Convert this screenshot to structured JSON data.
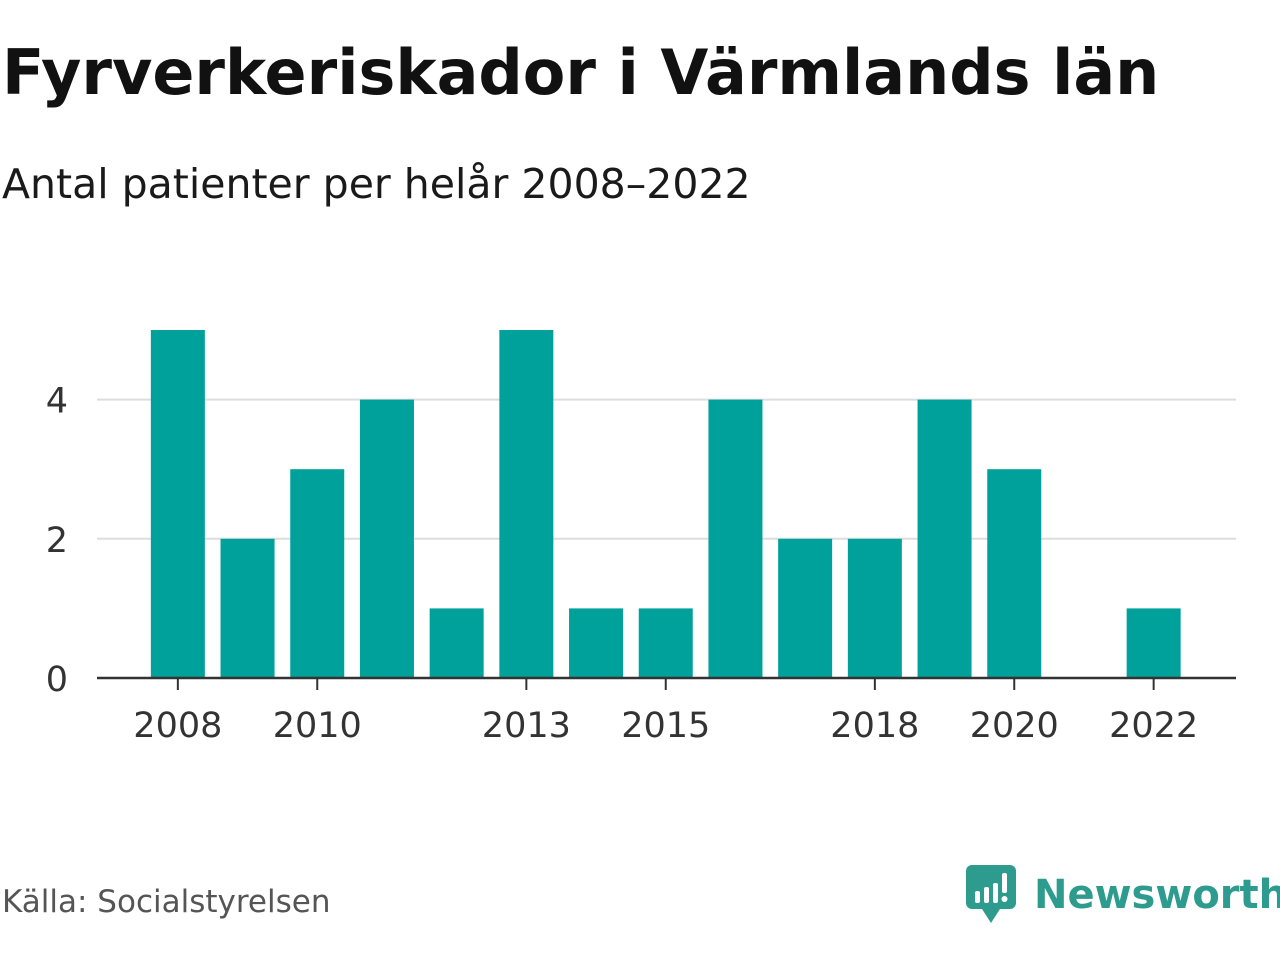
{
  "title": "Fyrverkeriskador i Värmlands län",
  "subtitle": "Antal patienter per helår 2008–2022",
  "source": "Källa: Socialstyrelsen",
  "brand": {
    "name": "Newsworthy",
    "icon": "newsworthy-logo-icon",
    "color": "#2e9b8f"
  },
  "colors": {
    "bar": "#00a19a",
    "grid": "#dddddd",
    "axis": "#333333"
  },
  "chart_data": {
    "type": "bar",
    "categories": [
      2008,
      2009,
      2010,
      2011,
      2012,
      2013,
      2014,
      2015,
      2016,
      2017,
      2018,
      2019,
      2020,
      2021,
      2022
    ],
    "values": [
      5,
      2,
      3,
      4,
      1,
      5,
      1,
      1,
      4,
      2,
      2,
      4,
      3,
      0,
      1
    ],
    "x_tick_labels": [
      "2008",
      "2010",
      "2013",
      "2015",
      "2018",
      "2020",
      "2022"
    ],
    "y_ticks": [
      0,
      2,
      4
    ],
    "ylim": [
      0,
      5
    ],
    "xlabel": "",
    "ylabel": "",
    "grid": true
  }
}
